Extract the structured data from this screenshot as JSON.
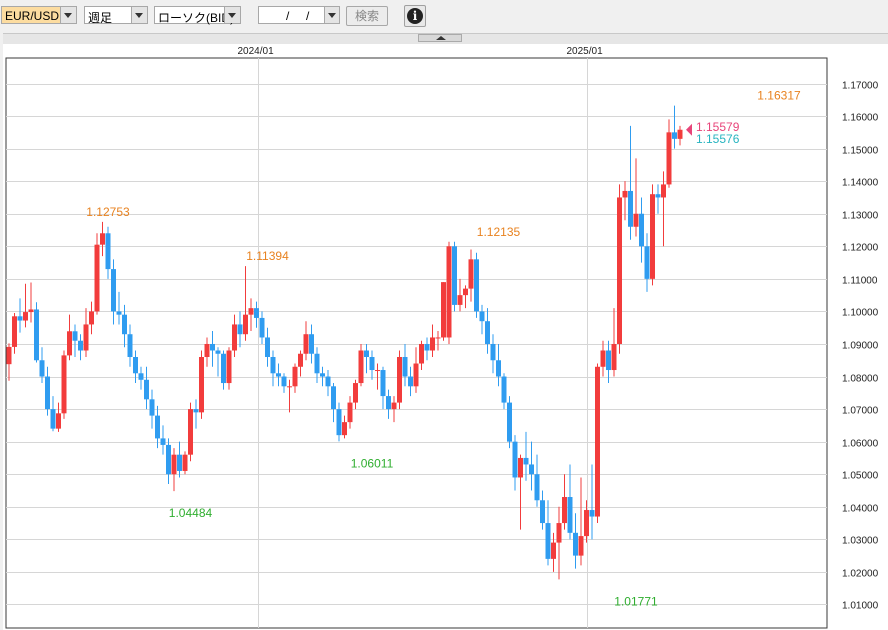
{
  "toolbar": {
    "currency_pair": "EUR/USD",
    "period": "週足",
    "chart_type": "ローソク(BID)",
    "date_separator": "/",
    "search_label": "検索",
    "info_label": "i"
  },
  "colors": {
    "up": "#f23c3c",
    "down": "#2f9cf0",
    "high_label": "#e8821f",
    "low_label": "#2fae2f",
    "bid": "#e8457a",
    "ask": "#28b4c0"
  },
  "chart_data": {
    "type": "candlestick",
    "instrument": "EUR/USD",
    "timeframe": "weekly",
    "x_labels": [
      "2024/01",
      "2025/01"
    ],
    "y_ticks": [
      "1.01000",
      "1.02000",
      "1.03000",
      "1.04000",
      "1.05000",
      "1.06000",
      "1.07000",
      "1.08000",
      "1.09000",
      "1.10000",
      "1.11000",
      "1.12000",
      "1.13000",
      "1.14000",
      "1.15000",
      "1.16000",
      "1.17000"
    ],
    "ylim": [
      1.005,
      1.1722
    ],
    "grid": true,
    "annotations": [
      {
        "text": "1.12753",
        "kind": "high",
        "price": 1.12753,
        "index": 18
      },
      {
        "text": "1.04484",
        "kind": "low",
        "price": 1.04484,
        "index": 33
      },
      {
        "text": "1.11394",
        "kind": "high",
        "price": 1.11394,
        "index": 47
      },
      {
        "text": "1.06011",
        "kind": "low",
        "price": 1.06011,
        "index": 66
      },
      {
        "text": "1.12135",
        "kind": "high",
        "price": 1.12135,
        "index": 89
      },
      {
        "text": "1.01771",
        "kind": "low",
        "price": 1.01771,
        "index": 114
      },
      {
        "text": "1.16317",
        "kind": "high",
        "price": 1.16317,
        "index": 140
      }
    ],
    "bid": "1.15579",
    "ask": "1.15576",
    "candles": [
      [
        1.0838,
        1.0891,
        1.0787,
        1.0902
      ],
      [
        1.0891,
        1.0985,
        1.087,
        1.0995
      ],
      [
        1.0985,
        1.0972,
        1.0935,
        1.104
      ],
      [
        1.0972,
        1.0998,
        1.0951,
        1.1085
      ],
      [
        1.0998,
        1.1006,
        1.0966,
        1.1089
      ],
      [
        1.1006,
        1.085,
        1.0843,
        1.1028
      ],
      [
        1.085,
        1.08,
        1.078,
        1.089
      ],
      [
        1.08,
        1.07,
        1.068,
        1.083
      ],
      [
        1.07,
        1.064,
        1.0632,
        1.074
      ],
      [
        1.064,
        1.0687,
        1.063,
        1.072
      ],
      [
        1.0687,
        1.0865,
        1.067,
        1.088
      ],
      [
        1.0865,
        1.0939,
        1.085,
        1.099
      ],
      [
        1.0939,
        1.091,
        1.086,
        1.096
      ],
      [
        1.091,
        1.088,
        1.085,
        1.093
      ],
      [
        1.088,
        1.096,
        1.086,
        1.101
      ],
      [
        1.096,
        1.1,
        1.093,
        1.103
      ],
      [
        1.1,
        1.1205,
        1.099,
        1.124
      ],
      [
        1.1205,
        1.124,
        1.117,
        1.1275
      ],
      [
        1.124,
        1.113,
        1.11,
        1.126
      ],
      [
        1.113,
        1.1,
        1.096,
        1.116
      ],
      [
        1.1,
        1.099,
        1.096,
        1.106
      ],
      [
        1.099,
        1.093,
        1.089,
        1.102
      ],
      [
        1.093,
        1.086,
        1.083,
        1.096
      ],
      [
        1.086,
        1.081,
        1.078,
        1.088
      ],
      [
        1.081,
        1.079,
        1.076,
        1.083
      ],
      [
        1.079,
        1.073,
        1.07,
        1.083
      ],
      [
        1.073,
        1.068,
        1.064,
        1.076
      ],
      [
        1.068,
        1.061,
        1.058,
        1.071
      ],
      [
        1.061,
        1.059,
        1.056,
        1.065
      ],
      [
        1.059,
        1.05,
        1.047,
        1.061
      ],
      [
        1.05,
        1.056,
        1.0448,
        1.058
      ],
      [
        1.056,
        1.051,
        1.049,
        1.06
      ],
      [
        1.051,
        1.056,
        1.05,
        1.057
      ],
      [
        1.056,
        1.07,
        1.054,
        1.072
      ],
      [
        1.07,
        1.069,
        1.064,
        1.073
      ],
      [
        1.069,
        1.086,
        1.067,
        1.088
      ],
      [
        1.086,
        1.09,
        1.083,
        1.092
      ],
      [
        1.09,
        1.088,
        1.083,
        1.094
      ],
      [
        1.088,
        1.087,
        1.08,
        1.089
      ],
      [
        1.087,
        1.078,
        1.076,
        1.088
      ],
      [
        1.078,
        1.088,
        1.076,
        1.089
      ],
      [
        1.088,
        1.096,
        1.086,
        1.099
      ],
      [
        1.096,
        1.093,
        1.089,
        1.1
      ],
      [
        1.093,
        1.099,
        1.091,
        1.1139
      ],
      [
        1.099,
        1.101,
        1.094,
        1.104
      ],
      [
        1.101,
        1.098,
        1.095,
        1.103
      ],
      [
        1.098,
        1.092,
        1.09,
        1.1
      ],
      [
        1.092,
        1.086,
        1.083,
        1.095
      ],
      [
        1.086,
        1.081,
        1.077,
        1.088
      ],
      [
        1.081,
        1.08,
        1.077,
        1.084
      ],
      [
        1.08,
        1.077,
        1.075,
        1.081
      ],
      [
        1.077,
        1.077,
        1.069,
        1.079
      ],
      [
        1.077,
        1.083,
        1.075,
        1.084
      ],
      [
        1.083,
        1.087,
        1.08,
        1.088
      ],
      [
        1.087,
        1.093,
        1.085,
        1.097
      ],
      [
        1.093,
        1.087,
        1.084,
        1.096
      ],
      [
        1.087,
        1.081,
        1.078,
        1.089
      ],
      [
        1.081,
        1.08,
        1.077,
        1.083
      ],
      [
        1.08,
        1.077,
        1.074,
        1.082
      ],
      [
        1.077,
        1.07,
        1.066,
        1.078
      ],
      [
        1.07,
        1.062,
        1.0601,
        1.072
      ],
      [
        1.062,
        1.066,
        1.061,
        1.068
      ],
      [
        1.066,
        1.072,
        1.064,
        1.074
      ],
      [
        1.072,
        1.078,
        1.07,
        1.079
      ],
      [
        1.078,
        1.088,
        1.077,
        1.09
      ],
      [
        1.088,
        1.086,
        1.081,
        1.09
      ],
      [
        1.086,
        1.082,
        1.079,
        1.088
      ],
      [
        1.082,
        1.082,
        1.076,
        1.084
      ],
      [
        1.082,
        1.074,
        1.07,
        1.083
      ],
      [
        1.074,
        1.07,
        1.067,
        1.076
      ],
      [
        1.07,
        1.072,
        1.066,
        1.074
      ],
      [
        1.072,
        1.086,
        1.07,
        1.088
      ],
      [
        1.086,
        1.08,
        1.077,
        1.09
      ],
      [
        1.08,
        1.077,
        1.074,
        1.083
      ],
      [
        1.077,
        1.084,
        1.075,
        1.089
      ],
      [
        1.084,
        1.09,
        1.082,
        1.091
      ],
      [
        1.09,
        1.088,
        1.085,
        1.092
      ],
      [
        1.088,
        1.092,
        1.086,
        1.096
      ],
      [
        1.092,
        1.092,
        1.088,
        1.094
      ],
      [
        1.092,
        1.109,
        1.091,
        1.109
      ],
      [
        1.092,
        1.12,
        1.09,
        1.1214
      ],
      [
        1.12,
        1.102,
        1.1,
        1.1214
      ],
      [
        1.102,
        1.105,
        1.1,
        1.11
      ],
      [
        1.105,
        1.107,
        1.101,
        1.108
      ],
      [
        1.107,
        1.116,
        1.103,
        1.119
      ],
      [
        1.116,
        1.1,
        1.098,
        1.118
      ],
      [
        1.1,
        1.097,
        1.093,
        1.102
      ],
      [
        1.097,
        1.09,
        1.087,
        1.101
      ],
      [
        1.09,
        1.085,
        1.081,
        1.093
      ],
      [
        1.085,
        1.08,
        1.077,
        1.09
      ],
      [
        1.08,
        1.072,
        1.07,
        1.081
      ],
      [
        1.072,
        1.06,
        1.058,
        1.074
      ],
      [
        1.06,
        1.049,
        1.045,
        1.062
      ],
      [
        1.049,
        1.055,
        1.033,
        1.056
      ],
      [
        1.055,
        1.053,
        1.048,
        1.063
      ],
      [
        1.053,
        1.05,
        1.045,
        1.06
      ],
      [
        1.05,
        1.042,
        1.04,
        1.056
      ],
      [
        1.042,
        1.035,
        1.033,
        1.045
      ],
      [
        1.035,
        1.024,
        1.022,
        1.042
      ],
      [
        1.024,
        1.029,
        1.02,
        1.032
      ],
      [
        1.029,
        1.035,
        1.0177,
        1.04
      ],
      [
        1.035,
        1.043,
        1.033,
        1.05
      ],
      [
        1.043,
        1.032,
        1.03,
        1.053
      ],
      [
        1.032,
        1.025,
        1.021,
        1.038
      ],
      [
        1.025,
        1.031,
        1.022,
        1.049
      ],
      [
        1.031,
        1.039,
        1.029,
        1.042
      ],
      [
        1.039,
        1.037,
        1.03,
        1.053
      ],
      [
        1.037,
        1.083,
        1.035,
        1.084
      ],
      [
        1.083,
        1.088,
        1.08,
        1.091
      ],
      [
        1.088,
        1.082,
        1.078,
        1.091
      ],
      [
        1.082,
        1.09,
        1.08,
        1.101
      ],
      [
        1.09,
        1.135,
        1.087,
        1.139
      ],
      [
        1.135,
        1.137,
        1.128,
        1.14
      ],
      [
        1.137,
        1.126,
        1.122,
        1.157
      ],
      [
        1.126,
        1.13,
        1.123,
        1.147
      ],
      [
        1.13,
        1.12,
        1.115,
        1.135
      ],
      [
        1.12,
        1.11,
        1.106,
        1.124
      ],
      [
        1.11,
        1.136,
        1.108,
        1.139
      ],
      [
        1.136,
        1.135,
        1.13,
        1.139
      ],
      [
        1.135,
        1.139,
        1.12,
        1.143
      ],
      [
        1.139,
        1.155,
        1.138,
        1.159
      ],
      [
        1.155,
        1.153,
        1.15,
        1.1632
      ],
      [
        1.153,
        1.1558,
        1.151,
        1.157
      ]
    ]
  }
}
